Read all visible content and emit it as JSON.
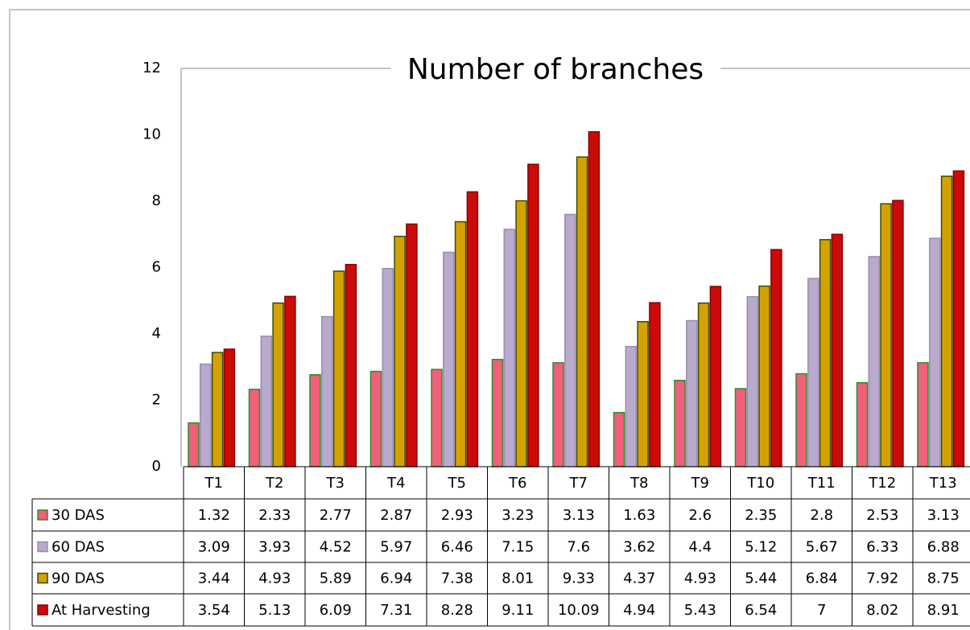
{
  "chart_data": {
    "type": "bar",
    "title": "Number of branches",
    "categories": [
      "T1",
      "T2",
      "T3",
      "T4",
      "T5",
      "T6",
      "T7",
      "T8",
      "T9",
      "T10",
      "T11",
      "T12",
      "T13"
    ],
    "series": [
      {
        "name": "30 DAS",
        "color": "#f0607a",
        "values": [
          1.32,
          2.33,
          2.77,
          2.87,
          2.93,
          3.23,
          3.13,
          1.63,
          2.6,
          2.35,
          2.8,
          2.53,
          3.13
        ]
      },
      {
        "name": "60 DAS",
        "color": "#b9aacd",
        "values": [
          3.09,
          3.93,
          4.52,
          5.97,
          6.46,
          7.15,
          7.6,
          3.62,
          4.4,
          5.12,
          5.67,
          6.33,
          6.88
        ]
      },
      {
        "name": "90 DAS",
        "color": "#d4a200",
        "values": [
          3.44,
          4.93,
          5.89,
          6.94,
          7.38,
          8.01,
          9.33,
          4.37,
          4.93,
          5.44,
          6.84,
          7.92,
          8.75
        ]
      },
      {
        "name": "At Harvesting",
        "color": "#cc0a0a",
        "values": [
          3.54,
          5.13,
          6.09,
          7.31,
          8.28,
          9.11,
          10.09,
          4.94,
          5.43,
          6.54,
          7,
          8.02,
          8.91
        ]
      }
    ],
    "ylim": [
      0,
      12
    ],
    "yticks": [
      0,
      2,
      4,
      6,
      8,
      10,
      12
    ],
    "grid": false
  }
}
